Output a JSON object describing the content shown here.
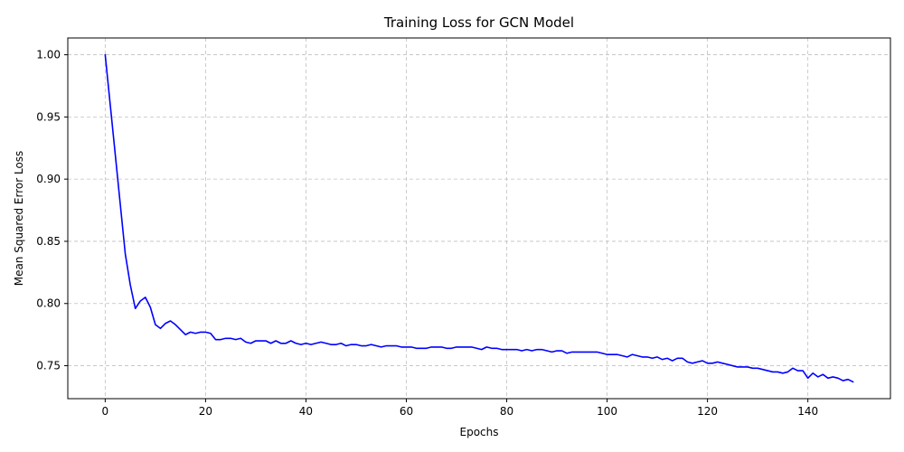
{
  "chart_data": {
    "type": "line",
    "title": "Training Loss for GCN Model",
    "xlabel": "Epochs",
    "ylabel": "Mean Squared Error Loss",
    "xlim": [
      -7.45,
      156.45
    ],
    "ylim": [
      0.7235,
      1.0135
    ],
    "xticks": [
      0,
      20,
      40,
      60,
      80,
      100,
      120,
      140
    ],
    "yticks": [
      0.75,
      0.8,
      0.85,
      0.9,
      0.95,
      1.0
    ],
    "ytick_labels": [
      "0.75",
      "0.80",
      "0.85",
      "0.90",
      "0.95",
      "1.00"
    ],
    "grid": true,
    "series": [
      {
        "color": "#0000ff",
        "x": [
          0,
          1,
          2,
          3,
          4,
          5,
          6,
          7,
          8,
          9,
          10,
          11,
          12,
          13,
          14,
          15,
          16,
          17,
          18,
          19,
          20,
          21,
          22,
          23,
          24,
          25,
          26,
          27,
          28,
          29,
          30,
          31,
          32,
          33,
          34,
          35,
          36,
          37,
          38,
          39,
          40,
          41,
          42,
          43,
          44,
          45,
          46,
          47,
          48,
          49,
          50,
          51,
          52,
          53,
          54,
          55,
          56,
          57,
          58,
          59,
          60,
          61,
          62,
          63,
          64,
          65,
          66,
          67,
          68,
          69,
          70,
          71,
          72,
          73,
          74,
          75,
          76,
          77,
          78,
          79,
          80,
          81,
          82,
          83,
          84,
          85,
          86,
          87,
          88,
          89,
          90,
          91,
          92,
          93,
          94,
          95,
          96,
          97,
          98,
          99,
          100,
          101,
          102,
          103,
          104,
          105,
          106,
          107,
          108,
          109,
          110,
          111,
          112,
          113,
          114,
          115,
          116,
          117,
          118,
          119,
          120,
          121,
          122,
          123,
          124,
          125,
          126,
          127,
          128,
          129,
          130,
          131,
          132,
          133,
          134,
          135,
          136,
          137,
          138,
          139,
          140,
          141,
          142,
          143,
          144,
          145,
          146,
          147,
          148,
          149
        ],
        "values": [
          1.0,
          0.96,
          0.92,
          0.88,
          0.84,
          0.815,
          0.796,
          0.802,
          0.805,
          0.797,
          0.783,
          0.78,
          0.784,
          0.786,
          0.783,
          0.779,
          0.775,
          0.777,
          0.776,
          0.777,
          0.777,
          0.776,
          0.771,
          0.771,
          0.772,
          0.772,
          0.771,
          0.772,
          0.769,
          0.768,
          0.77,
          0.77,
          0.77,
          0.768,
          0.77,
          0.768,
          0.768,
          0.77,
          0.768,
          0.767,
          0.768,
          0.767,
          0.768,
          0.769,
          0.768,
          0.767,
          0.767,
          0.768,
          0.766,
          0.767,
          0.767,
          0.766,
          0.766,
          0.767,
          0.766,
          0.765,
          0.766,
          0.766,
          0.766,
          0.765,
          0.765,
          0.765,
          0.764,
          0.764,
          0.764,
          0.765,
          0.765,
          0.765,
          0.764,
          0.764,
          0.765,
          0.765,
          0.765,
          0.765,
          0.764,
          0.763,
          0.765,
          0.764,
          0.764,
          0.763,
          0.763,
          0.763,
          0.763,
          0.762,
          0.763,
          0.762,
          0.763,
          0.763,
          0.762,
          0.761,
          0.762,
          0.762,
          0.76,
          0.761,
          0.761,
          0.761,
          0.761,
          0.761,
          0.761,
          0.76,
          0.759,
          0.759,
          0.759,
          0.758,
          0.757,
          0.759,
          0.758,
          0.757,
          0.757,
          0.756,
          0.757,
          0.755,
          0.756,
          0.754,
          0.756,
          0.756,
          0.753,
          0.752,
          0.753,
          0.754,
          0.752,
          0.752,
          0.753,
          0.752,
          0.751,
          0.75,
          0.749,
          0.749,
          0.749,
          0.748,
          0.748,
          0.747,
          0.746,
          0.745,
          0.745,
          0.744,
          0.745,
          0.748,
          0.746,
          0.746,
          0.74,
          0.744,
          0.741,
          0.743,
          0.74,
          0.741,
          0.74,
          0.738,
          0.739,
          0.737
        ]
      }
    ]
  }
}
